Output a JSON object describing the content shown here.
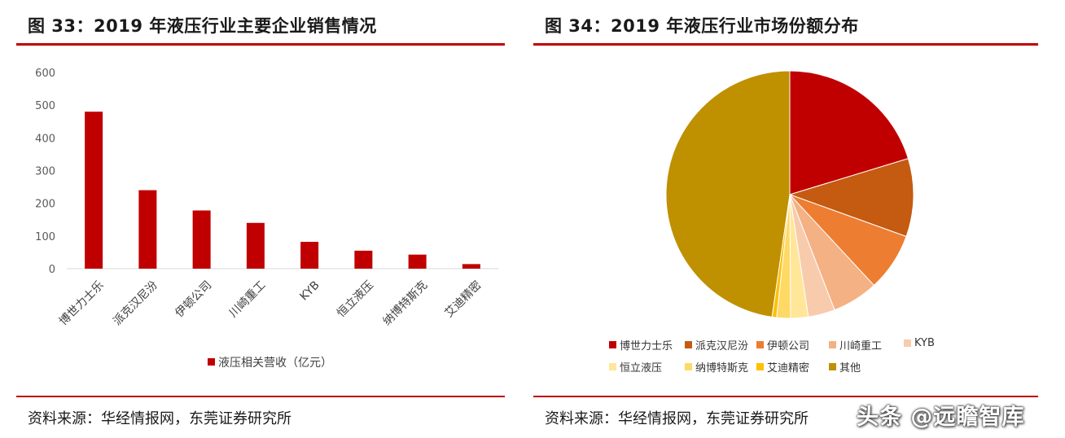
{
  "left": {
    "title": "图 33：2019 年液压行业主要企业销售情况",
    "source": "资料来源：华经情报网，东莞证券研究所"
  },
  "right": {
    "title": "图 34：2019 年液压行业市场份额分布",
    "source": "资料来源：华经情报网，东莞证券研究所"
  },
  "watermark": "头条 @远瞻智库",
  "chart_data": [
    {
      "type": "bar",
      "categories": [
        "博世力士乐",
        "派克汉尼汾",
        "伊顿公司",
        "川崎重工",
        "KYB",
        "恒立液压",
        "纳博特斯克",
        "艾迪精密"
      ],
      "series": [
        {
          "name": "液压相关营收（亿元）",
          "values": [
            480,
            240,
            178,
            140,
            82,
            55,
            43,
            14
          ],
          "color": "#c00000"
        }
      ],
      "yticks": [
        "0",
        "100",
        "200",
        "300",
        "400",
        "500",
        "600"
      ],
      "ylim": [
        0,
        600
      ],
      "legend_position": "bottom"
    },
    {
      "type": "pie",
      "labels": [
        "博世力士乐",
        "派克汉尼汾",
        "伊顿公司",
        "川崎重工",
        "KYB",
        "恒立液压",
        "纳博特斯克",
        "艾迪精密",
        "其他"
      ],
      "values": [
        20.3,
        10.2,
        7.6,
        6.0,
        3.5,
        2.3,
        1.8,
        0.6,
        47.7
      ],
      "colors": [
        "#c00000",
        "#c55a11",
        "#ed7d31",
        "#f4b183",
        "#f8cbad",
        "#ffe699",
        "#ffd966",
        "#ffc000",
        "#bf9000"
      ],
      "legend_position": "bottom"
    }
  ]
}
